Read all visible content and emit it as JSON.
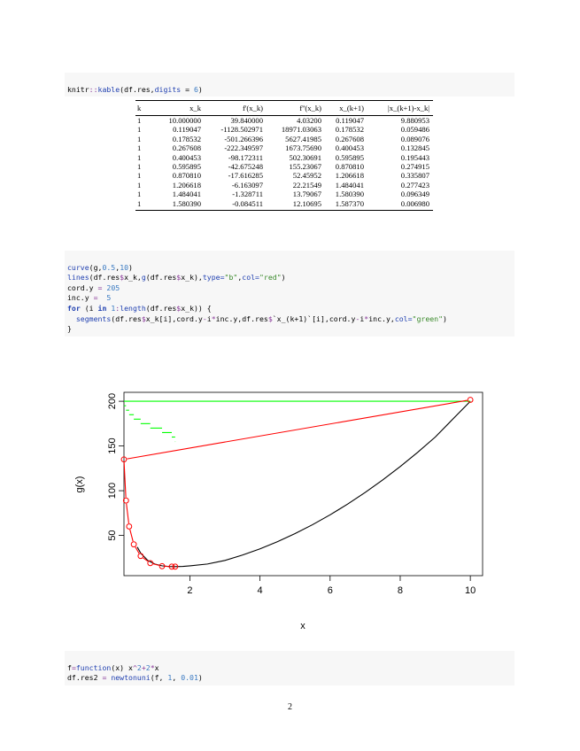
{
  "code1": {
    "prefix": "knitr",
    "sep": "::",
    "fn": "kable",
    "args_a": "(df.res,",
    "arg_name": "digits",
    "arg_eq": " = ",
    "arg_val": "6",
    "close": ")"
  },
  "table": {
    "headers": [
      "k",
      "x_k",
      "f'(x_k)",
      "f''(x_k)",
      "x_(k+1)",
      "|x_(k+1)-x_k|"
    ],
    "rows": [
      [
        "1",
        "10.000000",
        "39.840000",
        "4.03200",
        "0.119047",
        "9.880953"
      ],
      [
        "1",
        "0.119047",
        "-1128.502971",
        "18971.03063",
        "0.178532",
        "0.059486"
      ],
      [
        "1",
        "0.178532",
        "-501.266396",
        "5627.41985",
        "0.267608",
        "0.089076"
      ],
      [
        "1",
        "0.267608",
        "-222.349597",
        "1673.75690",
        "0.400453",
        "0.132845"
      ],
      [
        "1",
        "0.400453",
        "-98.172311",
        "502.30691",
        "0.595895",
        "0.195443"
      ],
      [
        "1",
        "0.595895",
        "-42.675248",
        "155.23067",
        "0.870810",
        "0.274915"
      ],
      [
        "1",
        "0.870810",
        "-17.616285",
        "52.45952",
        "1.206618",
        "0.335807"
      ],
      [
        "1",
        "1.206618",
        "-6.163097",
        "22.21549",
        "1.484041",
        "0.277423"
      ],
      [
        "1",
        "1.484041",
        "-1.328711",
        "13.79067",
        "1.580390",
        "0.096349"
      ],
      [
        "1",
        "1.580390",
        "-0.084511",
        "12.10695",
        "1.587370",
        "0.006980"
      ]
    ]
  },
  "code2": {
    "l1": [
      "curve",
      "(g,",
      "0.5",
      ",",
      "10",
      ")"
    ],
    "l2": [
      "lines",
      "(df.res",
      "$",
      "x_k,",
      "g",
      "(df.res",
      "$",
      "x_k),",
      "type=",
      "\"b\"",
      ",",
      "col=",
      "\"red\"",
      ")"
    ],
    "l3": [
      "cord.y ",
      "=",
      " ",
      "205"
    ],
    "l4": [
      "inc.y ",
      "=",
      "  ",
      "5"
    ],
    "l5": [
      "for",
      " (i ",
      "in",
      " ",
      "1",
      ":",
      "length",
      "(df.res",
      "$",
      "x_k)) {"
    ],
    "l6": [
      "  ",
      "segments",
      "(df.res",
      "$",
      "x_k[i],cord.y",
      "-",
      "i",
      "*",
      "inc.y,df.res",
      "$",
      "`x_(k+1)`[i],cord.y",
      "-",
      "i",
      "*",
      "inc.y,",
      "col=",
      "\"green\"",
      ")"
    ],
    "l7": "}"
  },
  "chart_data": {
    "type": "line",
    "title": "",
    "xlabel": "x",
    "ylabel": "g(x)",
    "xlim": [
      0.12,
      10.35
    ],
    "ylim": [
      5,
      210
    ],
    "xticks": [
      "2",
      "4",
      "6",
      "8",
      "10"
    ],
    "yticks": [
      "50",
      "100",
      "150",
      "200"
    ],
    "series": [
      {
        "kind": "curve",
        "color": "#000000",
        "description_function": "x^2 + 4*log(x)/x-ish",
        "x": [
          0.5,
          0.6,
          0.7,
          0.8,
          0.9,
          1.0,
          1.2,
          1.4,
          1.6,
          1.8,
          2.0,
          2.5,
          3,
          3.5,
          4,
          4.5,
          5,
          5.5,
          6,
          6.5,
          7,
          7.5,
          8,
          8.5,
          9,
          9.5,
          10
        ],
        "y": [
          37,
          30,
          26,
          22,
          20,
          18,
          16,
          15.2,
          15.1,
          15.3,
          16,
          18,
          22,
          28,
          35,
          43,
          52,
          62,
          73,
          85,
          98,
          112,
          127,
          143,
          160,
          180,
          200
        ]
      },
      {
        "kind": "points_lines",
        "color": "#ff0000",
        "x": [
          10.0,
          0.119047,
          0.178532,
          0.267608,
          0.400453,
          0.595895,
          0.87081,
          1.206618,
          1.484041,
          1.58039
        ],
        "y": [
          201.6,
          135,
          89,
          60,
          40,
          27,
          19,
          15.6,
          15.1,
          15.1
        ]
      },
      {
        "kind": "segments",
        "color": "#00ff00",
        "x0": [
          10.0,
          0.119047,
          0.178532,
          0.267608,
          0.400453,
          0.595895,
          0.87081,
          1.206618,
          1.484041,
          1.58039
        ],
        "x1": [
          0.119047,
          0.178532,
          0.267608,
          0.400453,
          0.595895,
          0.87081,
          1.206618,
          1.484041,
          1.58039,
          1.58737
        ],
        "y": [
          200,
          195,
          190,
          185,
          180,
          175,
          170,
          165,
          160,
          155
        ]
      }
    ]
  },
  "code3": {
    "l1": [
      "f",
      "=",
      "function",
      "(x) x",
      "^",
      "2",
      "+",
      "2",
      "*",
      "x"
    ],
    "l2": [
      "df.res2 ",
      "=",
      " ",
      "newtonuni",
      "(f, ",
      "1",
      ", ",
      "0.01",
      ")"
    ]
  },
  "page_number": "2"
}
